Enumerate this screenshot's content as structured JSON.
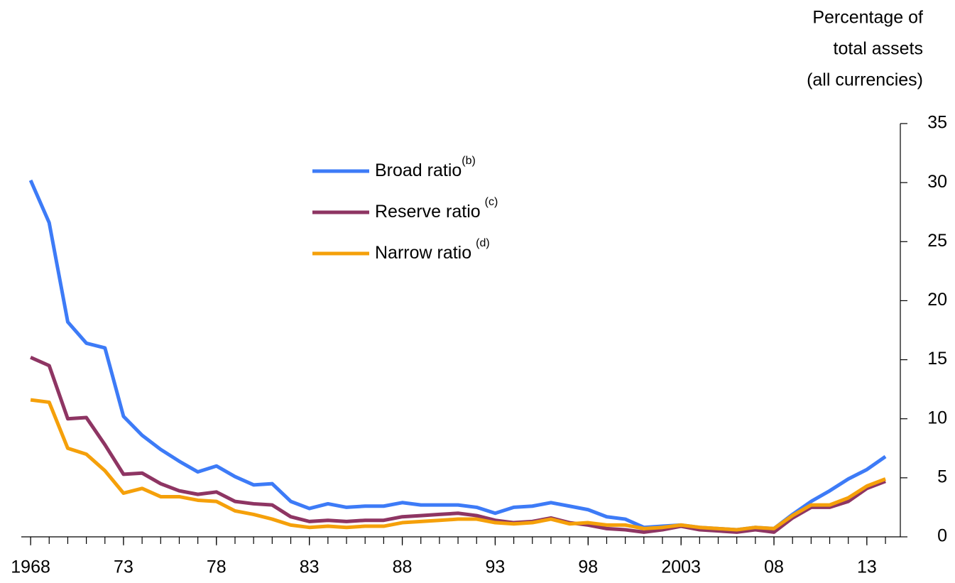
{
  "chart_data": {
    "type": "line",
    "y_label": [
      "Percentage of",
      "total assets",
      "(all currencies)"
    ],
    "x": [
      1968,
      1969,
      1970,
      1971,
      1972,
      1973,
      1974,
      1975,
      1976,
      1977,
      1978,
      1979,
      1980,
      1981,
      1982,
      1983,
      1984,
      1985,
      1986,
      1987,
      1988,
      1989,
      1990,
      1991,
      1992,
      1993,
      1994,
      1995,
      1996,
      1997,
      1998,
      1999,
      2000,
      2001,
      2002,
      2003,
      2004,
      2005,
      2006,
      2007,
      2008,
      2009,
      2010,
      2011,
      2012,
      2013,
      2014
    ],
    "series": [
      {
        "name": "Broad ratio",
        "superscript": "(b)",
        "color": "#3d7bf7",
        "values": [
          30.2,
          26.6,
          18.2,
          16.4,
          16.0,
          10.2,
          8.6,
          7.4,
          6.4,
          5.5,
          6.0,
          5.1,
          4.4,
          4.5,
          3.0,
          2.4,
          2.8,
          2.5,
          2.6,
          2.6,
          2.9,
          2.7,
          2.7,
          2.7,
          2.5,
          2.0,
          2.5,
          2.6,
          2.9,
          2.6,
          2.3,
          1.7,
          1.5,
          0.8,
          0.9,
          1.0,
          0.8,
          0.7,
          0.6,
          0.8,
          0.7,
          1.9,
          3.0,
          3.9,
          4.9,
          5.7,
          6.8
        ]
      },
      {
        "name": "Reserve ratio",
        "superscript": "(c)",
        "color": "#8e3563",
        "values": [
          15.2,
          14.5,
          10.0,
          10.1,
          7.8,
          5.3,
          5.4,
          4.5,
          3.9,
          3.6,
          3.8,
          3.0,
          2.8,
          2.7,
          1.7,
          1.3,
          1.4,
          1.3,
          1.4,
          1.4,
          1.7,
          1.8,
          1.9,
          2.0,
          1.8,
          1.4,
          1.2,
          1.3,
          1.6,
          1.2,
          1.0,
          0.7,
          0.6,
          0.4,
          0.6,
          0.9,
          0.6,
          0.5,
          0.4,
          0.6,
          0.4,
          1.6,
          2.5,
          2.5,
          3.0,
          4.1,
          4.7
        ]
      },
      {
        "name": "Narrow ratio",
        "superscript": "(d)",
        "color": "#f5a00a",
        "values": [
          11.6,
          11.4,
          7.5,
          7.0,
          5.6,
          3.7,
          4.1,
          3.4,
          3.4,
          3.1,
          3.0,
          2.2,
          1.9,
          1.5,
          1.0,
          0.8,
          0.9,
          0.8,
          0.9,
          0.9,
          1.2,
          1.3,
          1.4,
          1.5,
          1.5,
          1.2,
          1.1,
          1.2,
          1.5,
          1.1,
          1.2,
          1.0,
          1.0,
          0.7,
          0.8,
          1.0,
          0.8,
          0.7,
          0.6,
          0.8,
          0.7,
          1.8,
          2.7,
          2.7,
          3.3,
          4.3,
          4.9
        ]
      }
    ],
    "xlim": [
      1967.5,
      2014.8
    ],
    "xticks": [
      {
        "value": 1968,
        "label": "1968"
      },
      {
        "value": 1973,
        "label": "73"
      },
      {
        "value": 1978,
        "label": "78"
      },
      {
        "value": 1983,
        "label": "83"
      },
      {
        "value": 1988,
        "label": "88"
      },
      {
        "value": 1993,
        "label": "93"
      },
      {
        "value": 1998,
        "label": "98"
      },
      {
        "value": 2003,
        "label": "2003"
      },
      {
        "value": 2008,
        "label": "08"
      },
      {
        "value": 2013,
        "label": "13"
      }
    ],
    "ylim": [
      0,
      35
    ],
    "yticks": [
      0,
      5,
      10,
      15,
      20,
      25,
      30,
      35
    ],
    "y_axis_side": "right"
  }
}
